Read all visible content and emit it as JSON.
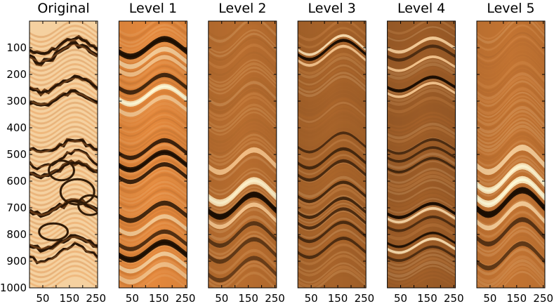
{
  "chart_data": {
    "type": "heatmap",
    "colormap": "copper",
    "y_axis": {
      "range": [
        0,
        1000
      ],
      "ticks": [
        100,
        200,
        300,
        400,
        500,
        600,
        700,
        800,
        900,
        1000
      ],
      "inverted": true
    },
    "x_axis": {
      "range": [
        0,
        256
      ],
      "ticks": [
        50,
        150,
        250
      ],
      "minor_ticks": [
        100,
        200
      ]
    },
    "panels": [
      {
        "title": "Original",
        "kind": "raw"
      },
      {
        "title": "Level 1",
        "kind": "layers",
        "sway": 33,
        "base_tone": 0.72,
        "layers": [
          [
            100,
            0.9,
            22
          ],
          [
            138,
            -0.5,
            18
          ],
          [
            168,
            -0.35,
            16
          ],
          [
            235,
            0.6,
            16
          ],
          [
            278,
            -0.85,
            20
          ],
          [
            318,
            -0.4,
            16
          ],
          [
            480,
            0.7,
            16
          ],
          [
            525,
            0.85,
            20
          ],
          [
            570,
            0.7,
            16
          ],
          [
            715,
            0.6,
            18
          ],
          [
            765,
            -0.45,
            16
          ],
          [
            822,
            0.45,
            16
          ],
          [
            862,
            0.9,
            22
          ],
          [
            905,
            -0.5,
            16
          ],
          [
            945,
            -0.35,
            18
          ]
        ]
      },
      {
        "title": "Level 2",
        "kind": "layers",
        "sway": 42,
        "base_tone": 0.56,
        "layers": [
          [
            525,
            -0.35,
            20
          ],
          [
            640,
            -0.75,
            26
          ],
          [
            692,
            1.0,
            22
          ],
          [
            730,
            -0.4,
            16
          ],
          [
            800,
            0.35,
            16
          ],
          [
            860,
            0.3,
            16
          ],
          [
            930,
            0.2,
            16
          ]
        ]
      },
      {
        "title": "Level 3",
        "kind": "layers",
        "sway": 36,
        "base_tone": 0.5,
        "layers": [
          [
            90,
            -0.7,
            10
          ],
          [
            108,
            1.0,
            12
          ],
          [
            130,
            -0.4,
            10
          ],
          [
            455,
            0.5,
            10
          ],
          [
            515,
            0.6,
            12
          ],
          [
            560,
            0.55,
            12
          ],
          [
            640,
            0.6,
            12
          ],
          [
            700,
            0.6,
            12
          ],
          [
            740,
            0.5,
            12
          ],
          [
            790,
            0.55,
            12
          ],
          [
            850,
            0.5,
            12
          ]
        ]
      },
      {
        "title": "Level 4",
        "kind": "layers",
        "sway": 26,
        "base_tone": 0.46,
        "layers": [
          [
            90,
            -0.5,
            12
          ],
          [
            120,
            0.5,
            12
          ],
          [
            160,
            -0.4,
            10
          ],
          [
            236,
            1.0,
            12
          ],
          [
            258,
            -0.4,
            10
          ],
          [
            470,
            0.5,
            10
          ],
          [
            500,
            0.55,
            10
          ],
          [
            540,
            0.6,
            10
          ],
          [
            710,
            1.0,
            12
          ],
          [
            728,
            -0.6,
            10
          ],
          [
            760,
            0.5,
            10
          ],
          [
            820,
            0.8,
            10
          ],
          [
            842,
            -0.7,
            10
          ],
          [
            872,
            0.5,
            10
          ]
        ]
      },
      {
        "title": "Level 5",
        "kind": "layers",
        "sway": 46,
        "base_tone": 0.6,
        "layers": [
          [
            520,
            -0.5,
            22
          ],
          [
            590,
            -0.8,
            24
          ],
          [
            640,
            -0.85,
            26
          ],
          [
            680,
            1.0,
            24
          ],
          [
            730,
            -0.5,
            18
          ],
          [
            790,
            0.4,
            18
          ],
          [
            880,
            0.3,
            18
          ]
        ]
      }
    ]
  }
}
